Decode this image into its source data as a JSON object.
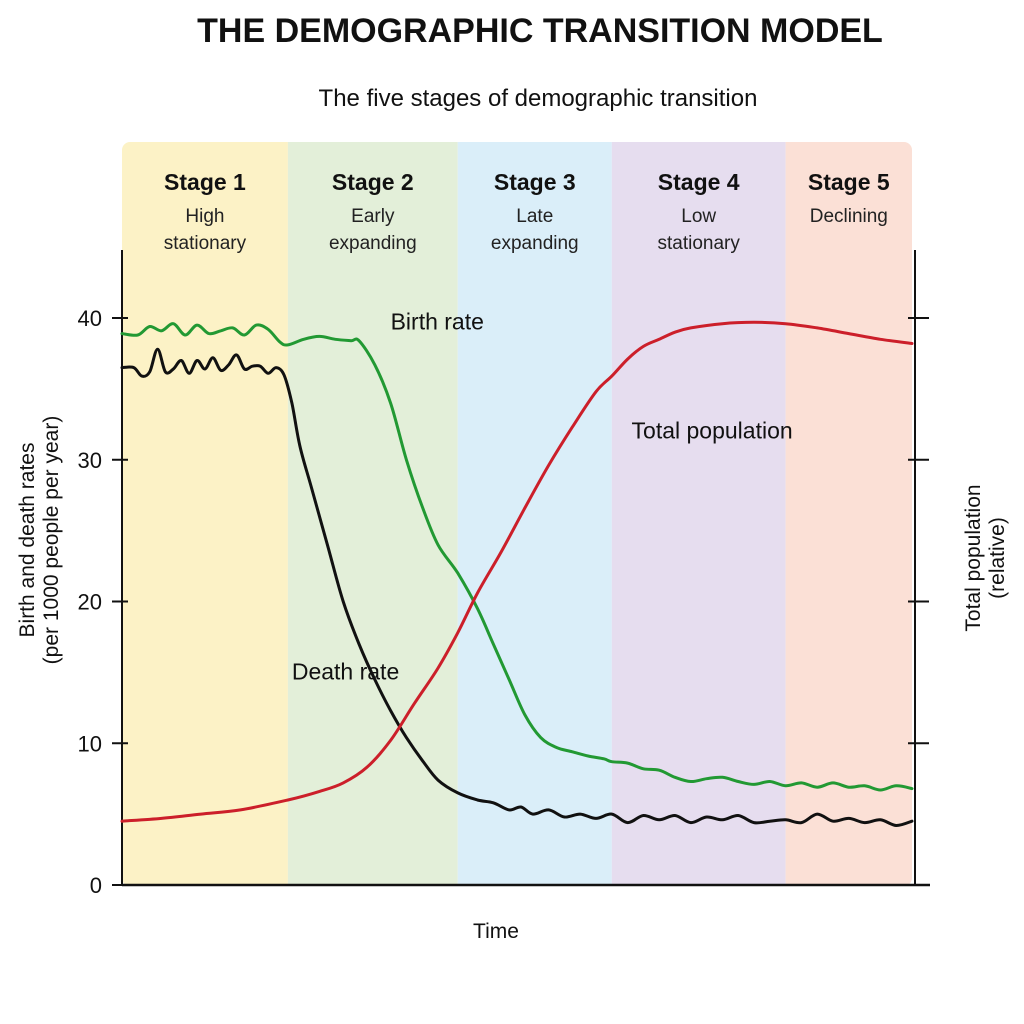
{
  "page": {
    "title": "THE DEMOGRAPHIC TRANSITION MODEL",
    "subtitle": "The five stages of demographic transition"
  },
  "chart_data": {
    "type": "line",
    "title": "THE DEMOGRAPHIC TRANSITION MODEL",
    "subtitle": "The five stages of demographic transition",
    "xlabel": "Time",
    "ylabel_lines": [
      "Birth and death rates",
      "(per 1000 people per year)"
    ],
    "y2label_lines": [
      "Total population",
      "(relative)"
    ],
    "ylim": [
      0,
      40
    ],
    "yticks": [
      0,
      10,
      20,
      30,
      40
    ],
    "xlim": [
      0,
      100
    ],
    "grid": false,
    "stages": [
      {
        "name": "Stage 1",
        "desc": [
          "High",
          "stationary"
        ],
        "x_start": 0,
        "x_end": 21,
        "color": "#fcf2c6"
      },
      {
        "name": "Stage 2",
        "desc": [
          "Early",
          "expanding"
        ],
        "x_start": 21,
        "x_end": 42.5,
        "color": "#e3efd9"
      },
      {
        "name": "Stage 3",
        "desc": [
          "Late",
          "expanding"
        ],
        "x_start": 42.5,
        "x_end": 62,
        "color": "#daeef9"
      },
      {
        "name": "Stage 4",
        "desc": [
          "Low",
          "stationary"
        ],
        "x_start": 62,
        "x_end": 84,
        "color": "#e6ddef"
      },
      {
        "name": "Stage 5",
        "desc": [
          "Declining"
        ],
        "x_start": 84,
        "x_end": 100,
        "color": "#fbe0d6"
      }
    ],
    "series": [
      {
        "name": "Birth rate",
        "color": "#229933",
        "x": [
          0,
          2,
          3.5,
          5,
          6.5,
          8,
          9.5,
          11,
          12.5,
          14,
          15.5,
          17,
          18.5,
          20,
          21,
          23,
          25,
          27,
          29,
          30,
          32,
          34,
          36,
          38,
          40,
          42.5,
          45,
          47,
          49,
          51,
          53,
          55,
          57,
          59,
          61,
          62,
          64,
          66,
          68,
          70,
          72,
          74,
          76,
          78,
          80,
          82,
          84,
          86,
          88,
          90,
          92,
          94,
          96,
          98,
          100
        ],
        "values": [
          38.9,
          38.8,
          39.4,
          39.1,
          39.6,
          38.8,
          39.5,
          38.9,
          39.1,
          39.3,
          38.8,
          39.5,
          39.2,
          38.3,
          38.1,
          38.5,
          38.7,
          38.5,
          38.4,
          38.4,
          36.7,
          34.0,
          30.0,
          26.7,
          24.0,
          22.0,
          19.5,
          17.0,
          14.5,
          12.0,
          10.4,
          9.7,
          9.4,
          9.1,
          8.9,
          8.7,
          8.6,
          8.2,
          8.1,
          7.6,
          7.3,
          7.5,
          7.6,
          7.3,
          7.1,
          7.3,
          7.0,
          7.2,
          6.9,
          7.2,
          6.9,
          7.0,
          6.7,
          7.0,
          6.8
        ]
      },
      {
        "name": "Death rate",
        "color": "#111111",
        "x": [
          0,
          1.5,
          2.5,
          3.5,
          4.5,
          5.5,
          6.5,
          7.5,
          8.5,
          9.5,
          10.5,
          11.5,
          12.5,
          13.5,
          14.5,
          15.5,
          16.5,
          17.5,
          18.5,
          19.5,
          20.5,
          21.5,
          22.5,
          24,
          26,
          28,
          30,
          32,
          34,
          36,
          38,
          40,
          42.5,
          45,
          47,
          49,
          50.5,
          52,
          54,
          56,
          58,
          60,
          62,
          64,
          66,
          68,
          70,
          72,
          74,
          76,
          78,
          80,
          82,
          84,
          86,
          88,
          90,
          92,
          94,
          96,
          98,
          100
        ],
        "values": [
          36.5,
          36.5,
          35.9,
          36.2,
          37.8,
          36.2,
          36.4,
          37.0,
          36.1,
          37.0,
          36.4,
          37.2,
          36.3,
          36.7,
          37.4,
          36.4,
          36.6,
          36.6,
          36.1,
          36.5,
          36.0,
          34.0,
          31.0,
          28.0,
          24.0,
          20.0,
          17.0,
          14.5,
          12.3,
          10.4,
          8.8,
          7.4,
          6.5,
          6.0,
          5.8,
          5.3,
          5.5,
          5.0,
          5.3,
          4.8,
          5.0,
          4.7,
          5.0,
          4.4,
          4.9,
          4.6,
          4.9,
          4.4,
          4.8,
          4.6,
          4.9,
          4.4,
          4.5,
          4.6,
          4.4,
          5.0,
          4.5,
          4.7,
          4.4,
          4.6,
          4.2,
          4.5
        ]
      },
      {
        "name": "Total population",
        "color": "#cc1f2a",
        "x": [
          0,
          5,
          10,
          15,
          21,
          25,
          28,
          31,
          34,
          37,
          40,
          42.5,
          45,
          48,
          51,
          54,
          57,
          60,
          62,
          64,
          66,
          68,
          70,
          72,
          76,
          80,
          84,
          88,
          92,
          96,
          100
        ],
        "values": [
          4.5,
          4.7,
          5.0,
          5.3,
          6.0,
          6.6,
          7.2,
          8.3,
          10.2,
          12.8,
          15.3,
          17.8,
          20.6,
          23.5,
          26.6,
          29.6,
          32.3,
          34.8,
          35.9,
          37.1,
          38.0,
          38.5,
          39.0,
          39.3,
          39.6,
          39.7,
          39.6,
          39.3,
          38.9,
          38.5,
          38.2
        ]
      }
    ],
    "annotations": [
      {
        "text": "Birth rate",
        "x": 34,
        "y": 39.2
      },
      {
        "text": "Death rate",
        "x": 21.5,
        "y": 14.5
      },
      {
        "text": "Total population",
        "x": 64.5,
        "y": 31.5
      }
    ]
  }
}
